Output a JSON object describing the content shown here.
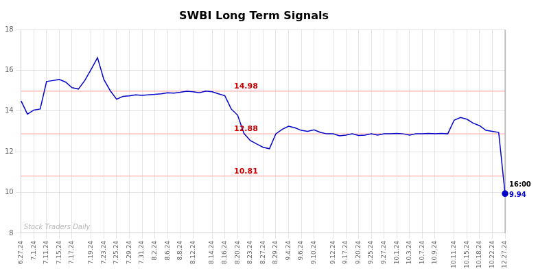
{
  "chart_data": {
    "type": "line",
    "title": "SWBI Long Term Signals",
    "categories": [
      "6.27.24",
      null,
      "7.1.24",
      null,
      "7.11.24",
      null,
      "7.15.24",
      null,
      "7.17.24",
      null,
      null,
      "7.19.24",
      null,
      "7.23.24",
      null,
      "7.25.24",
      null,
      "7.29.24",
      null,
      "7.31.24",
      null,
      "8.2.24",
      null,
      "8.6.24",
      null,
      "8.8.24",
      null,
      "8.12.24",
      null,
      null,
      "8.14.24",
      null,
      "8.16.24",
      null,
      "8.20.24",
      null,
      "8.23.24",
      null,
      "8.27.24",
      null,
      "8.29.24",
      null,
      "9.4.24",
      null,
      "9.6.24",
      null,
      "9.10.24",
      null,
      null,
      "9.12.24",
      null,
      "9.17.24",
      null,
      "9.20.24",
      null,
      "9.25.24",
      null,
      "9.27.24",
      null,
      "10.1.24",
      null,
      "10.3.24",
      null,
      "10.7.24",
      null,
      "10.9.24",
      null,
      null,
      "10.11.24",
      null,
      "10.15.24",
      null,
      "10.18.24",
      null,
      "10.22.24",
      null,
      "12.27.24"
    ],
    "values": [
      14.5,
      13.85,
      14.05,
      14.1,
      15.45,
      15.5,
      15.55,
      15.42,
      15.15,
      15.08,
      15.5,
      16.05,
      16.62,
      15.55,
      15.0,
      14.58,
      14.72,
      14.75,
      14.8,
      14.77,
      14.8,
      14.82,
      14.85,
      14.9,
      14.88,
      14.92,
      14.97,
      14.95,
      14.9,
      14.98,
      14.95,
      14.85,
      14.75,
      14.1,
      13.8,
      12.9,
      12.55,
      12.38,
      12.22,
      12.15,
      12.88,
      13.1,
      13.25,
      13.18,
      13.05,
      13.0,
      13.08,
      12.95,
      12.88,
      12.88,
      12.78,
      12.82,
      12.88,
      12.8,
      12.82,
      12.88,
      12.82,
      12.88,
      12.88,
      12.9,
      12.88,
      12.82,
      12.88,
      12.88,
      12.9,
      12.88,
      12.9,
      12.88,
      13.55,
      13.68,
      13.6,
      13.4,
      13.28,
      13.05,
      13.0,
      12.95,
      9.94
    ],
    "color": "#0000cc",
    "ylim": [
      8,
      18
    ],
    "yticks": [
      8,
      10,
      12,
      14,
      16,
      18
    ],
    "grid": true,
    "hlines": [
      {
        "y": 14.98,
        "label": "14.98"
      },
      {
        "y": 12.88,
        "label": "12.88"
      },
      {
        "y": 10.81,
        "label": "10.81"
      }
    ],
    "annotations": [
      {
        "text": "16:00",
        "color": "#000000"
      },
      {
        "text": "9.94",
        "color": "#0000cc"
      }
    ],
    "watermark": "Stock Traders Daily"
  }
}
